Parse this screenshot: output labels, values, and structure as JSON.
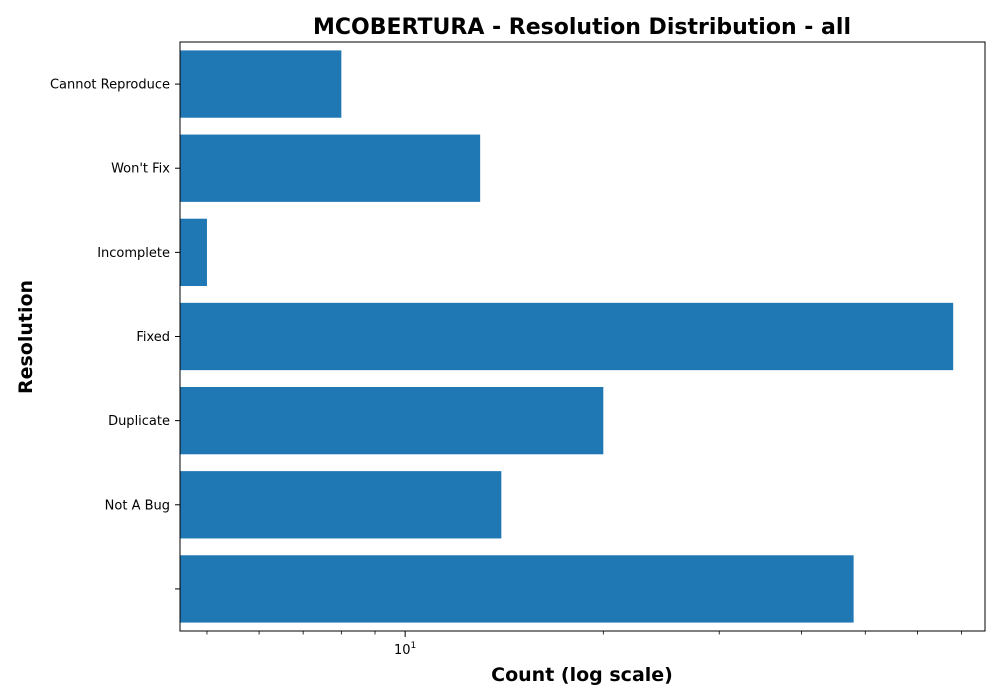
{
  "chart_data": {
    "type": "bar",
    "orientation": "horizontal",
    "title": "MCOBERTURA - Resolution Distribution - all",
    "xlabel": "Count (log scale)",
    "ylabel": "Resolution",
    "x_scale": "log",
    "x_tick_labels": [
      {
        "value": 10,
        "base": "10",
        "exponent": "1"
      }
    ],
    "xlim": [
      4.55,
      76
    ],
    "categories": [
      "",
      "Not A Bug",
      "Duplicate",
      "Fixed",
      "Incomplete",
      "Won't Fix",
      "Cannot Reproduce"
    ],
    "values": [
      48,
      14,
      20,
      68,
      5,
      13,
      8
    ],
    "grid": false,
    "legend": false,
    "bar_color": "#1f77b4"
  }
}
